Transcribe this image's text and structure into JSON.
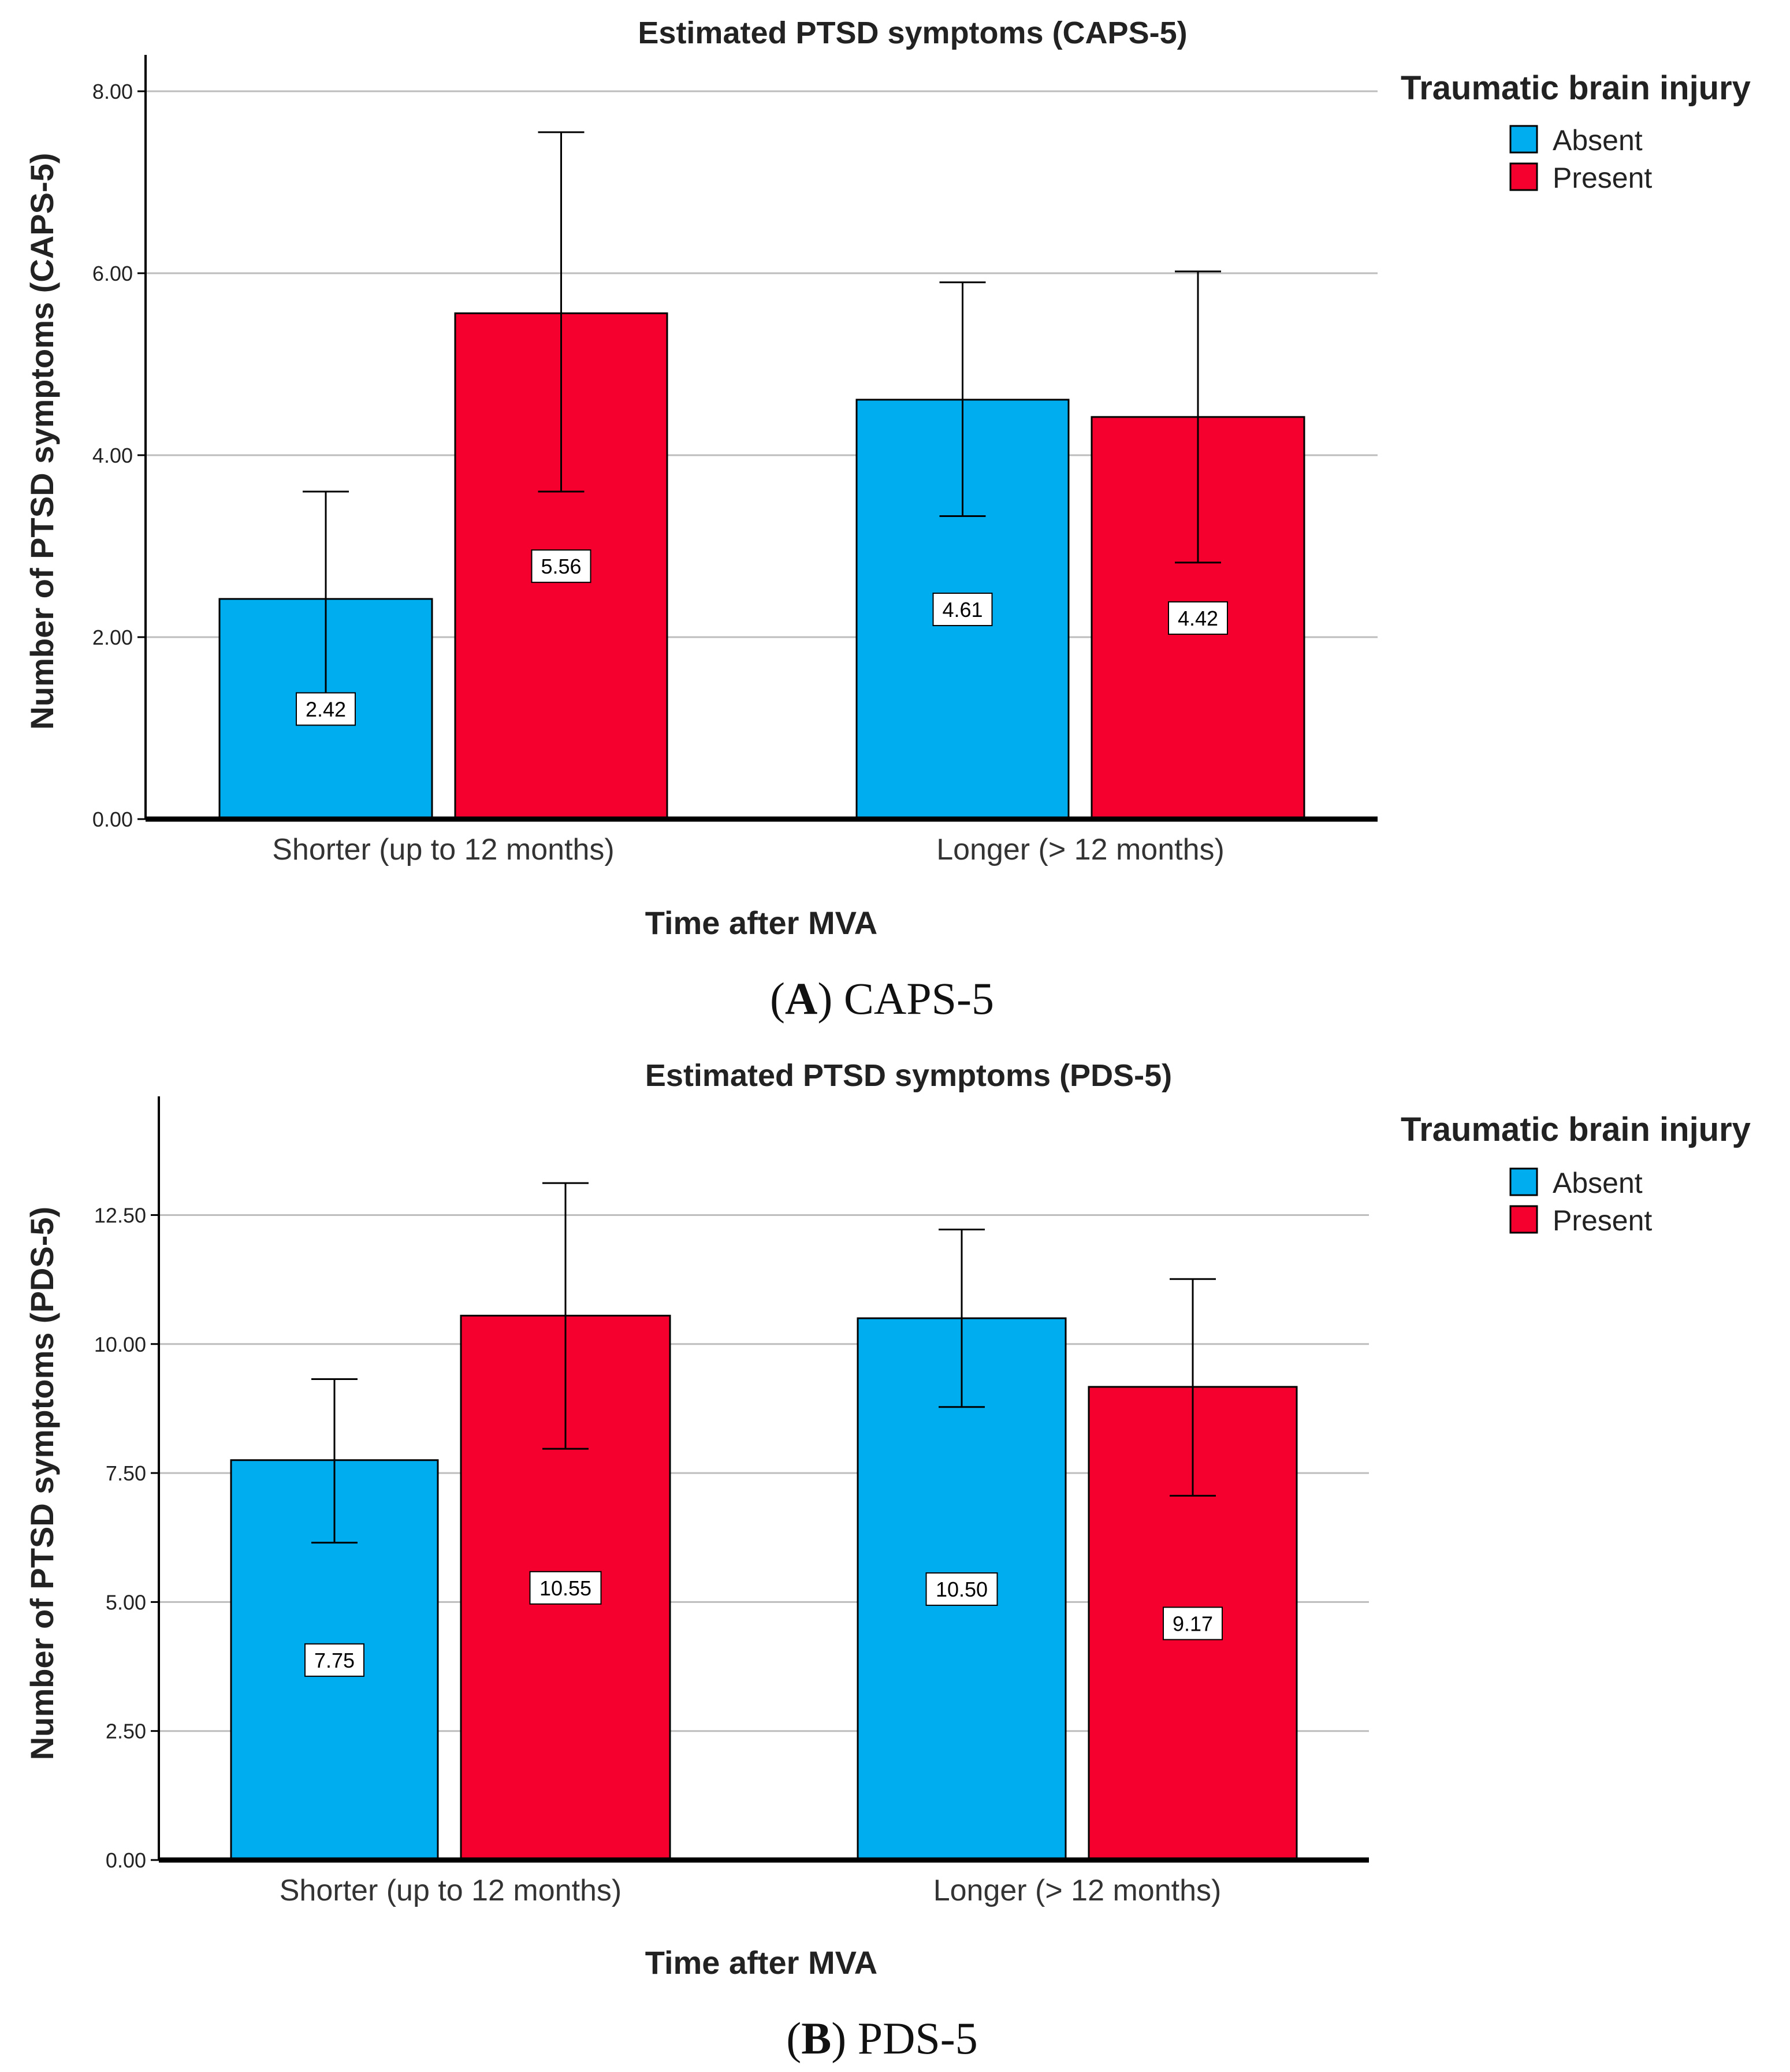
{
  "figure": {
    "panels": [
      {
        "letter": "A",
        "caption": "CAPS-5"
      },
      {
        "letter": "B",
        "caption": "PDS-5"
      }
    ]
  },
  "colors": {
    "absent": "#00AEEF",
    "present": "#F5002E",
    "grid": "#BDBDBD",
    "axis": "#000000"
  },
  "chart_data": [
    {
      "type": "bar",
      "title": "Estimated PTSD symptoms (CAPS-5)",
      "xlabel": "Time after MVA",
      "ylabel": "Number of PTSD symptoms (CAPS-5)",
      "categories": [
        "Shorter (up to 12 months)",
        "Longer (> 12 months)"
      ],
      "ylim": [
        0,
        8.4
      ],
      "yticks": [
        0,
        2,
        4,
        6,
        8
      ],
      "ytick_labels": [
        "0.00",
        "2.00",
        "4.00",
        "6.00",
        "8.00"
      ],
      "grid": true,
      "legend": {
        "title": "Traumatic brain injury",
        "position": "top-right"
      },
      "series": [
        {
          "name": "Absent",
          "values": [
            2.42,
            4.61
          ],
          "value_labels": [
            "2.42",
            "4.61"
          ],
          "error_low": [
            1.25,
            3.33
          ],
          "error_high": [
            3.6,
            5.9
          ]
        },
        {
          "name": "Present",
          "values": [
            5.56,
            4.42
          ],
          "value_labels": [
            "5.56",
            "4.42"
          ],
          "error_low": [
            3.6,
            2.82
          ],
          "error_high": [
            7.55,
            6.02
          ]
        }
      ]
    },
    {
      "type": "bar",
      "title": "Estimated PTSD symptoms (PDS-5)",
      "xlabel": "Time after MVA",
      "ylabel": "Number of PTSD symptoms (PDS-5)",
      "categories": [
        "Shorter (up to 12 months)",
        "Longer (> 12 months)"
      ],
      "ylim": [
        0,
        14.8
      ],
      "yticks": [
        0,
        2.5,
        5,
        7.5,
        10,
        12.5
      ],
      "ytick_labels": [
        "0.00",
        "2.50",
        "5.00",
        "7.50",
        "10.00",
        "12.50"
      ],
      "grid": true,
      "legend": {
        "title": "Traumatic brain injury",
        "position": "top-right"
      },
      "series": [
        {
          "name": "Absent",
          "values": [
            7.75,
            10.5
          ],
          "value_labels": [
            "7.75",
            "10.50"
          ],
          "error_low": [
            6.15,
            8.78
          ],
          "error_high": [
            9.32,
            12.22
          ]
        },
        {
          "name": "Present",
          "values": [
            10.55,
            9.17
          ],
          "value_labels": [
            "10.55",
            "9.17"
          ],
          "error_low": [
            7.97,
            7.06
          ],
          "error_high": [
            13.12,
            11.26
          ]
        }
      ]
    }
  ]
}
